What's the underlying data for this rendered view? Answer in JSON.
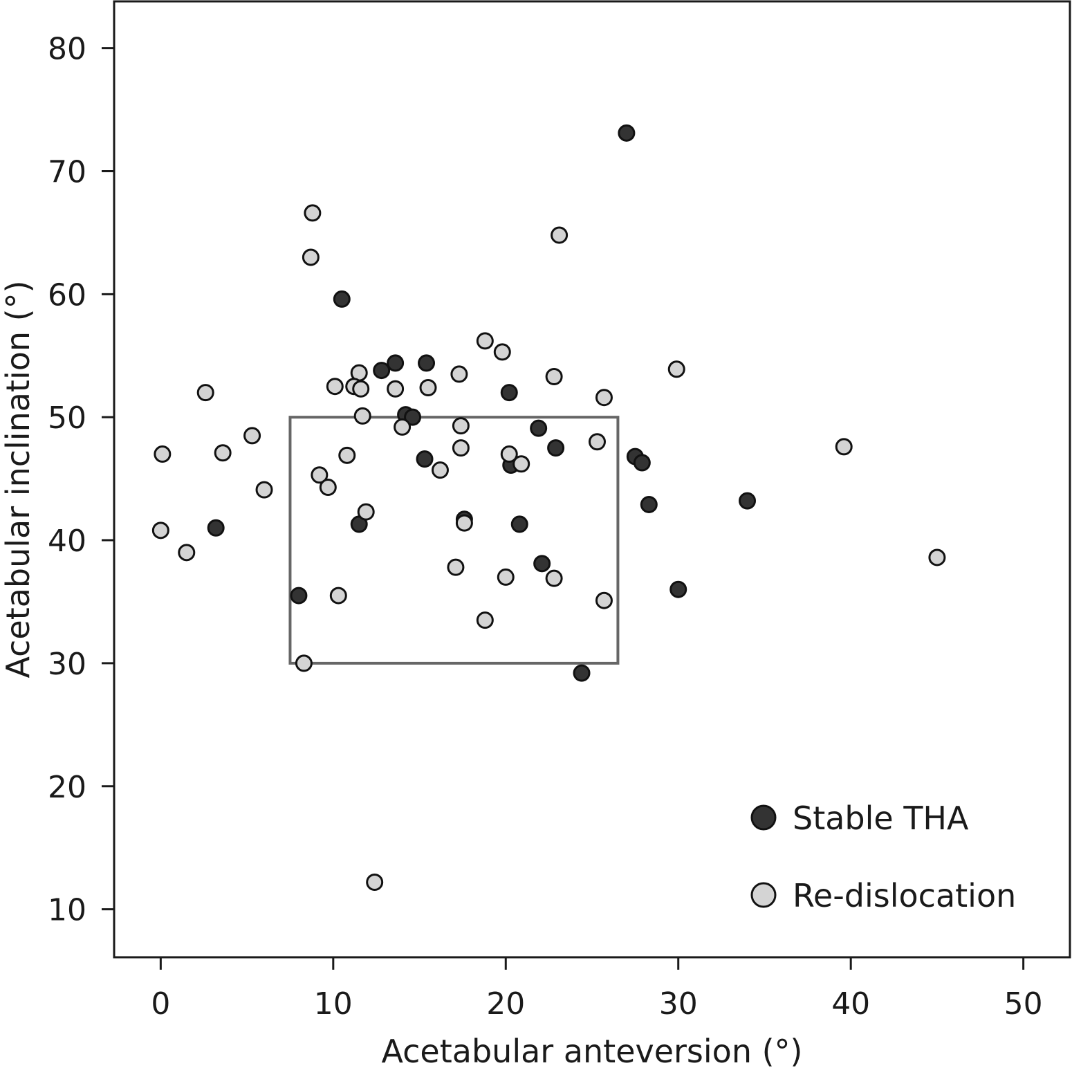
{
  "chart_data": {
    "type": "scatter",
    "title": "",
    "xlabel": "Acetabular anteversion (°)",
    "ylabel": "Acetabular inclination (°)",
    "xlim": [
      -2.7,
      52.7
    ],
    "ylim": [
      6.1,
      83.8
    ],
    "xticks": [
      0,
      10,
      20,
      30,
      40,
      50
    ],
    "yticks": [
      10,
      20,
      30,
      40,
      50,
      60,
      70,
      80
    ],
    "grid": false,
    "legend_position": "bottom-right",
    "safe_zone": {
      "x": [
        7.5,
        26.5
      ],
      "y": [
        30,
        50
      ],
      "color": "#666666"
    },
    "series": [
      {
        "name": "Stable THA",
        "color": "#333333",
        "points": [
          [
            27.0,
            73.1
          ],
          [
            10.5,
            59.6
          ],
          [
            12.8,
            53.8
          ],
          [
            13.6,
            54.4
          ],
          [
            15.4,
            54.4
          ],
          [
            20.2,
            52.0
          ],
          [
            14.2,
            50.2
          ],
          [
            14.6,
            50.0
          ],
          [
            21.9,
            49.1
          ],
          [
            22.9,
            47.5
          ],
          [
            15.3,
            46.6
          ],
          [
            20.3,
            46.1
          ],
          [
            27.5,
            46.8
          ],
          [
            27.9,
            46.3
          ],
          [
            28.3,
            42.9
          ],
          [
            34.0,
            43.2
          ],
          [
            3.2,
            41.0
          ],
          [
            11.5,
            41.3
          ],
          [
            17.6,
            41.7
          ],
          [
            20.8,
            41.3
          ],
          [
            22.1,
            38.1
          ],
          [
            8.0,
            35.5
          ],
          [
            30.0,
            36.0
          ],
          [
            24.4,
            29.2
          ]
        ]
      },
      {
        "name": "Re-dislocation",
        "color": "#d4d4d4",
        "points": [
          [
            8.8,
            66.6
          ],
          [
            8.7,
            63.0
          ],
          [
            23.1,
            64.8
          ],
          [
            18.8,
            56.2
          ],
          [
            19.8,
            55.3
          ],
          [
            29.9,
            53.9
          ],
          [
            11.5,
            53.6
          ],
          [
            17.3,
            53.5
          ],
          [
            22.8,
            53.3
          ],
          [
            10.1,
            52.5
          ],
          [
            11.2,
            52.5
          ],
          [
            11.6,
            52.3
          ],
          [
            13.6,
            52.3
          ],
          [
            15.5,
            52.4
          ],
          [
            2.6,
            52.0
          ],
          [
            25.7,
            51.6
          ],
          [
            11.7,
            50.1
          ],
          [
            14.0,
            49.2
          ],
          [
            17.4,
            49.3
          ],
          [
            5.3,
            48.5
          ],
          [
            25.3,
            48.0
          ],
          [
            0.1,
            47.0
          ],
          [
            3.6,
            47.1
          ],
          [
            10.8,
            46.9
          ],
          [
            17.4,
            47.5
          ],
          [
            20.2,
            47.0
          ],
          [
            20.9,
            46.2
          ],
          [
            16.2,
            45.7
          ],
          [
            39.6,
            47.6
          ],
          [
            9.2,
            45.3
          ],
          [
            9.7,
            44.3
          ],
          [
            6.0,
            44.1
          ],
          [
            11.9,
            42.3
          ],
          [
            17.6,
            41.4
          ],
          [
            0.0,
            40.8
          ],
          [
            1.5,
            39.0
          ],
          [
            17.1,
            37.8
          ],
          [
            20.0,
            37.0
          ],
          [
            22.8,
            36.9
          ],
          [
            10.3,
            35.5
          ],
          [
            25.7,
            35.1
          ],
          [
            18.8,
            33.5
          ],
          [
            8.3,
            30.0
          ],
          [
            12.4,
            12.2
          ],
          [
            45.0,
            38.6
          ]
        ]
      }
    ]
  }
}
